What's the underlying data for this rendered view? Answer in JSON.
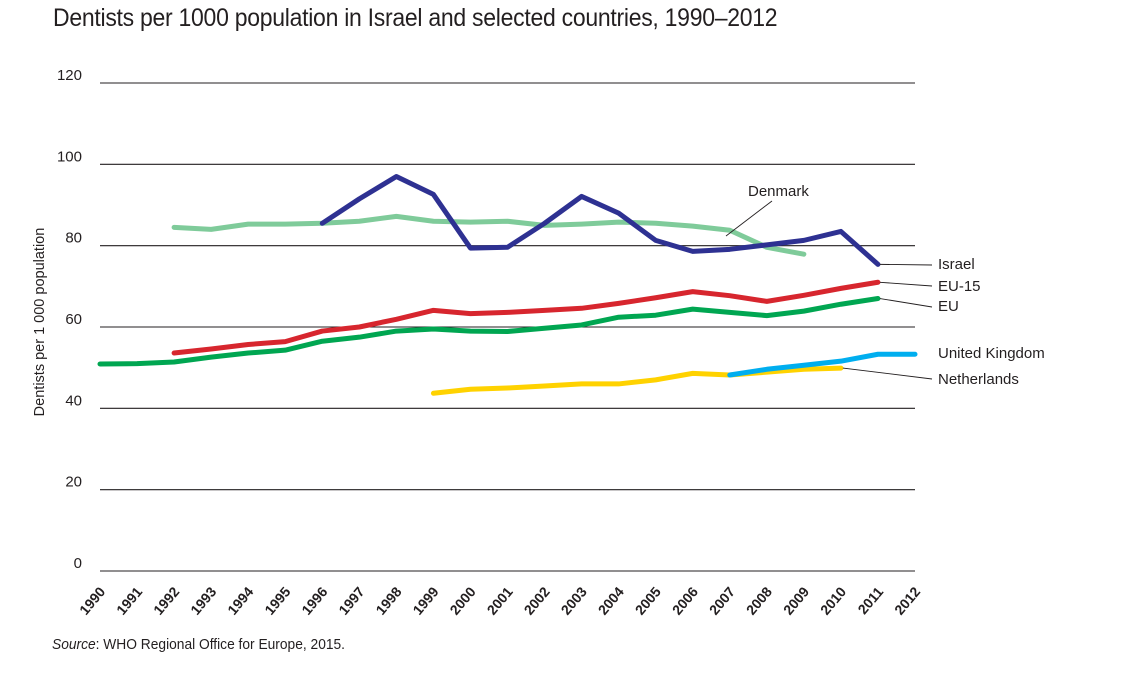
{
  "chart_data": {
    "type": "line",
    "title": "Dentists per 1000 population in Israel and selected countries, 1990–2012",
    "xlabel": "",
    "ylabel": "Dentists per 1 000 population",
    "ylim": [
      0,
      120
    ],
    "yticks": [
      "0",
      "20",
      "40",
      "60",
      "80",
      "100",
      "120"
    ],
    "grid": true,
    "legend": "direct-labels-right",
    "x": [
      "1990",
      "1991",
      "1992",
      "1993",
      "1994",
      "1995",
      "1996",
      "1997",
      "1998",
      "1999",
      "2000",
      "2001",
      "2002",
      "2003",
      "2004",
      "2005",
      "2006",
      "2007",
      "2008",
      "2009",
      "2010",
      "2011",
      "2012"
    ],
    "series": [
      {
        "name": "Denmark",
        "color": "#7FCB9A",
        "values": [
          null,
          null,
          84.5,
          84.0,
          85.3,
          85.3,
          85.5,
          86.0,
          87.2,
          86.0,
          85.8,
          86.0,
          85.0,
          85.3,
          85.8,
          85.5,
          84.8,
          83.8,
          79.6,
          77.9,
          null,
          null,
          null
        ]
      },
      {
        "name": "Israel",
        "color": "#2E3192",
        "values": [
          null,
          null,
          null,
          null,
          null,
          null,
          85.5,
          91.5,
          97.0,
          92.6,
          79.4,
          79.6,
          85.5,
          92.1,
          88.0,
          81.3,
          78.6,
          79.1,
          80.2,
          81.3,
          83.5,
          75.4,
          null
        ]
      },
      {
        "name": "EU-15",
        "color": "#D7262E",
        "values": [
          null,
          null,
          53.6,
          54.6,
          55.7,
          56.4,
          59.0,
          60.0,
          61.9,
          64.1,
          63.3,
          63.6,
          64.1,
          64.6,
          65.8,
          67.2,
          68.7,
          67.7,
          66.3,
          67.8,
          69.5,
          71.0,
          null
        ]
      },
      {
        "name": "EU",
        "color": "#00A651",
        "values": [
          50.9,
          51.0,
          51.4,
          52.6,
          53.6,
          54.3,
          56.5,
          57.5,
          59.0,
          59.5,
          59.0,
          58.9,
          59.7,
          60.5,
          62.4,
          62.9,
          64.4,
          63.6,
          62.8,
          63.9,
          65.6,
          67.0,
          null
        ]
      },
      {
        "name": "Netherlands",
        "color": "#FFD200",
        "values": [
          null,
          null,
          null,
          null,
          null,
          null,
          null,
          null,
          null,
          43.7,
          44.7,
          45.0,
          45.5,
          46.0,
          46.0,
          47.0,
          48.6,
          48.2,
          48.9,
          49.6,
          49.9,
          null,
          null
        ]
      },
      {
        "name": "United Kingdom",
        "color": "#00AEEF",
        "values": [
          null,
          null,
          null,
          null,
          null,
          null,
          null,
          null,
          null,
          null,
          null,
          null,
          null,
          null,
          null,
          null,
          null,
          48.2,
          49.6,
          50.6,
          51.6,
          53.3,
          53.3
        ]
      }
    ],
    "annotations": {
      "source_label": "Source",
      "source_text": ": WHO Regional Office for Europe, 2015."
    }
  }
}
